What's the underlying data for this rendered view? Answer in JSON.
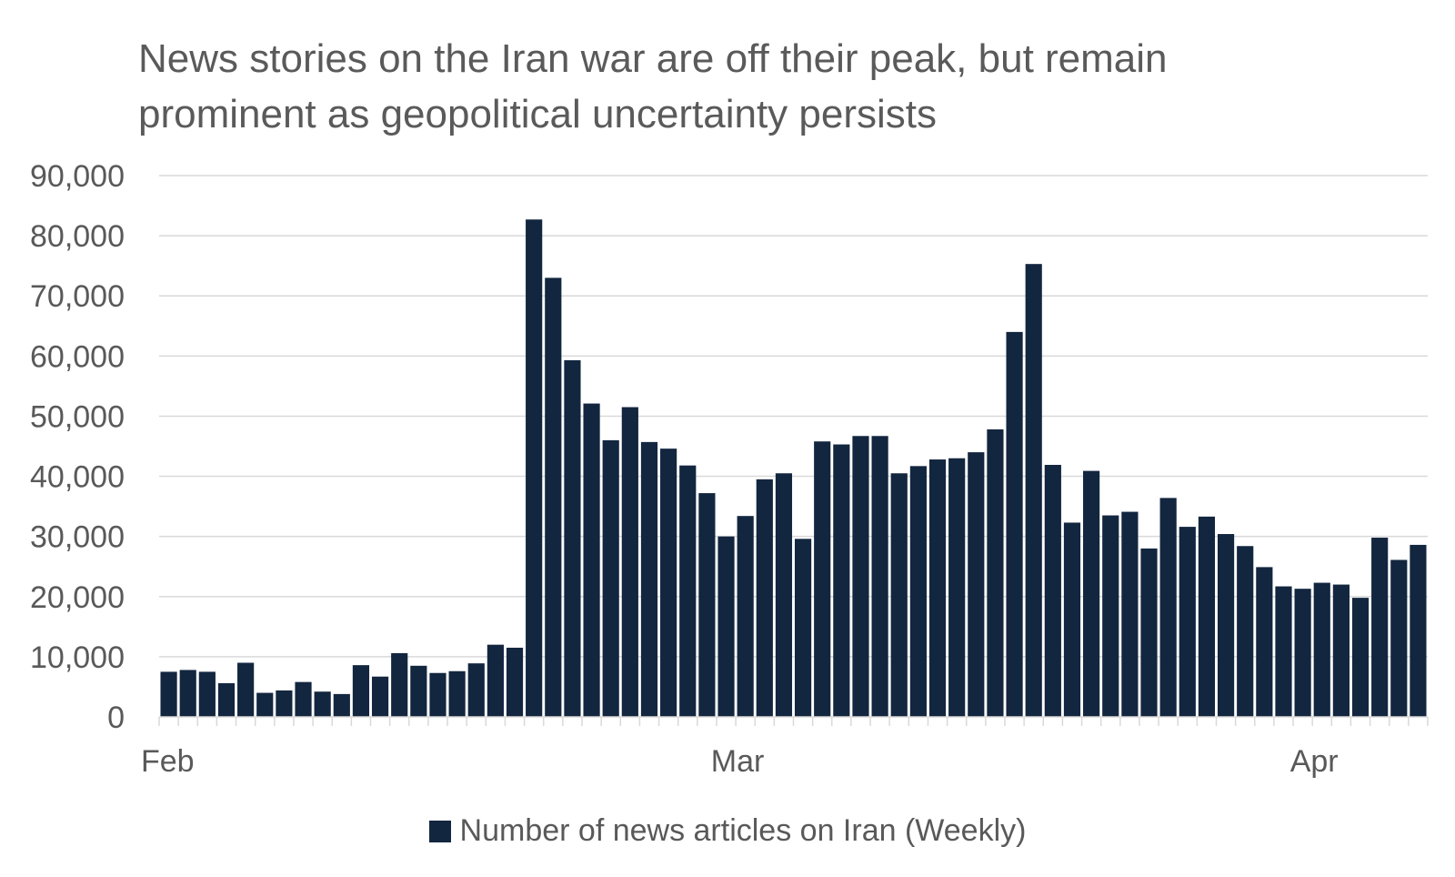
{
  "chart_data": {
    "type": "bar",
    "title_lines": [
      "News stories on the Iran war are off their peak, but remain",
      "prominent as geopolitical uncertainty persists"
    ],
    "xlabel": "",
    "ylabel": "",
    "ylim": [
      0,
      90000
    ],
    "y_ticks": [
      0,
      10000,
      20000,
      30000,
      40000,
      50000,
      60000,
      70000,
      80000,
      90000
    ],
    "y_tick_labels": [
      "0",
      "10,000",
      "20,000",
      "30,000",
      "40,000",
      "50,000",
      "60,000",
      "70,000",
      "80,000",
      "90,000"
    ],
    "x_labels": [
      {
        "label": "Feb",
        "bar_index": 0
      },
      {
        "label": "Mar",
        "bar_index": 30
      },
      {
        "label": "Apr",
        "bar_index": 60
      }
    ],
    "grid": true,
    "legend_position": "bottom",
    "bar_color": "#13263f",
    "series": [
      {
        "name": "Number of news articles on Iran (Weekly)",
        "values": [
          7500,
          7800,
          7500,
          5600,
          9000,
          4000,
          4400,
          5800,
          4200,
          3800,
          8600,
          6700,
          10600,
          8500,
          7300,
          7600,
          8900,
          12000,
          11500,
          82700,
          73000,
          59300,
          52100,
          46000,
          51500,
          45700,
          44600,
          41800,
          37200,
          30000,
          33400,
          39500,
          40500,
          29600,
          45800,
          45300,
          46700,
          46700,
          40500,
          41700,
          42800,
          43000,
          44000,
          47800,
          64000,
          75300,
          41900,
          32300,
          40900,
          33500,
          34100,
          28000,
          36400,
          31600,
          33300,
          30400,
          28400,
          24900,
          21700,
          21300,
          22300,
          22000,
          19800,
          29800,
          26100,
          28600
        ]
      }
    ]
  }
}
